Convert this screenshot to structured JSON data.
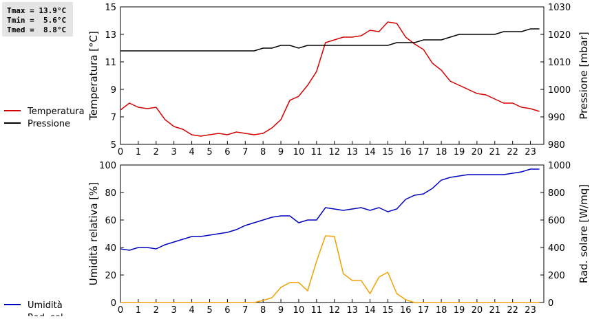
{
  "chart_data": [
    {
      "type": "line",
      "annotations": [
        "Tmax = 13.9°C",
        "Tmin =  5.6°C",
        "Tmed =  8.8°C"
      ],
      "x": [
        0,
        0.5,
        1,
        1.5,
        2,
        2.5,
        3,
        3.5,
        4,
        4.5,
        5,
        5.5,
        6,
        6.5,
        7,
        7.5,
        8,
        8.5,
        9,
        9.5,
        10,
        10.5,
        11,
        11.5,
        12,
        12.5,
        13,
        13.5,
        14,
        14.5,
        15,
        15.5,
        16,
        16.5,
        17,
        17.5,
        18,
        18.5,
        19,
        19.5,
        20,
        20.5,
        21,
        21.5,
        22,
        22.5,
        23,
        23.5
      ],
      "xlim": [
        0,
        23.75
      ],
      "xticks": [
        0,
        1,
        2,
        3,
        4,
        5,
        6,
        7,
        8,
        9,
        10,
        11,
        12,
        13,
        14,
        15,
        16,
        17,
        18,
        19,
        20,
        21,
        22,
        23
      ],
      "ylabel": "Temperatura [°C]",
      "ylim": [
        5,
        15
      ],
      "yticks": [
        5,
        7,
        9,
        11,
        13,
        15
      ],
      "y2label": "Pressione [mbar]",
      "y2lim": [
        980,
        1030
      ],
      "y2ticks": [
        980,
        990,
        1000,
        1010,
        1020,
        1030
      ],
      "series": [
        {
          "name": "Temperatura",
          "color": "#d40000",
          "values": [
            7.5,
            8.0,
            7.7,
            7.6,
            7.7,
            6.8,
            6.3,
            6.1,
            5.7,
            5.6,
            5.7,
            5.8,
            5.7,
            5.9,
            5.8,
            5.7,
            5.8,
            6.2,
            6.8,
            8.2,
            8.5,
            9.3,
            10.3,
            12.4,
            12.6,
            12.8,
            12.8,
            12.9,
            13.3,
            13.2,
            13.9,
            13.8,
            12.8,
            12.3,
            11.9,
            10.9,
            10.4,
            9.6,
            9.3,
            9.0,
            8.7,
            8.6,
            8.3,
            8.0,
            8.0,
            7.7,
            7.6,
            7.4
          ]
        },
        {
          "name": "Pressione",
          "color": "#000000",
          "axis": "y2",
          "values": [
            1014,
            1014,
            1014,
            1014,
            1014,
            1014,
            1014,
            1014,
            1014,
            1014,
            1014,
            1014,
            1014,
            1014,
            1014,
            1014,
            1015,
            1015,
            1016,
            1016,
            1015,
            1016,
            1016,
            1016,
            1016,
            1016,
            1016,
            1016,
            1016,
            1016,
            1016,
            1017,
            1017,
            1017,
            1018,
            1018,
            1018,
            1019,
            1020,
            1020,
            1020,
            1020,
            1020,
            1021,
            1021,
            1021,
            1022,
            1022
          ]
        }
      ]
    },
    {
      "type": "line",
      "x": [
        0,
        0.5,
        1,
        1.5,
        2,
        2.5,
        3,
        3.5,
        4,
        4.5,
        5,
        5.5,
        6,
        6.5,
        7,
        7.5,
        8,
        8.5,
        9,
        9.5,
        10,
        10.5,
        11,
        11.5,
        12,
        12.5,
        13,
        13.5,
        14,
        14.5,
        15,
        15.5,
        16,
        16.5,
        17,
        17.5,
        18,
        18.5,
        19,
        19.5,
        20,
        20.5,
        21,
        21.5,
        22,
        22.5,
        23,
        23.5
      ],
      "xlim": [
        0,
        23.75
      ],
      "xticks": [
        0,
        1,
        2,
        3,
        4,
        5,
        6,
        7,
        8,
        9,
        10,
        11,
        12,
        13,
        14,
        15,
        16,
        17,
        18,
        19,
        20,
        21,
        22,
        23
      ],
      "ylabel": "Umidità relativa [%]",
      "ylim": [
        0,
        100
      ],
      "yticks": [
        0,
        20,
        40,
        60,
        80,
        100
      ],
      "y2label": "Rad. solare [W/mq]",
      "y2lim": [
        0,
        1000
      ],
      "y2ticks": [
        0,
        200,
        400,
        600,
        800,
        1000
      ],
      "series": [
        {
          "name": "Umidità",
          "color": "#0000c0",
          "values": [
            39,
            38,
            40,
            40,
            39,
            42,
            44,
            46,
            48,
            48,
            49,
            50,
            51,
            53,
            56,
            58,
            60,
            62,
            63,
            63,
            58,
            60,
            60,
            69,
            68,
            67,
            68,
            69,
            67,
            69,
            66,
            68,
            75,
            78,
            79,
            83,
            89,
            91,
            92,
            93,
            93,
            93,
            93,
            93,
            94,
            95,
            97,
            97
          ]
        },
        {
          "name": "Rad. sol.",
          "color": "#f0a000",
          "axis": "y2",
          "values": [
            0,
            0,
            0,
            0,
            0,
            0,
            0,
            0,
            0,
            0,
            0,
            0,
            0,
            0,
            0,
            0,
            15,
            35,
            110,
            145,
            145,
            85,
            300,
            485,
            480,
            210,
            160,
            160,
            65,
            185,
            220,
            65,
            20,
            0,
            0,
            0,
            0,
            0,
            0,
            0,
            0,
            0,
            0,
            0,
            0,
            0,
            0,
            0
          ]
        }
      ]
    }
  ]
}
